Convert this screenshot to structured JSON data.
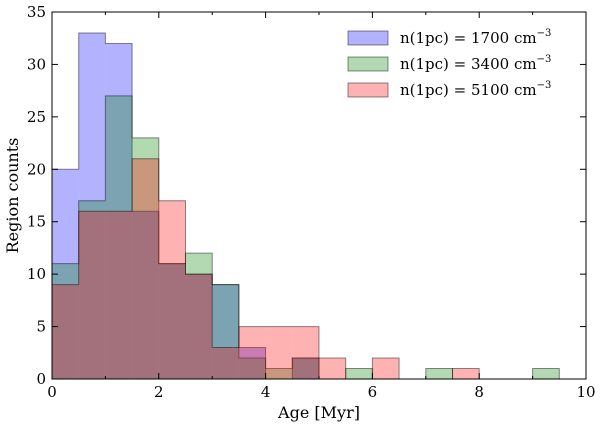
{
  "chart_data": {
    "type": "histogram",
    "title": "",
    "xlabel": "Age [Myr]",
    "ylabel": "Region counts",
    "xlim": [
      0,
      10
    ],
    "ylim": [
      0,
      35
    ],
    "xticks": [
      0,
      2,
      4,
      6,
      8,
      10
    ],
    "yticks": [
      0,
      5,
      10,
      15,
      20,
      25,
      30,
      35
    ],
    "bin_width": 0.5,
    "grid": false,
    "legend_position": "upper-right",
    "series": [
      {
        "name": "n(1pc) = 1700 cm",
        "superscript": "−3",
        "color": "#0000ff",
        "bins": [
          {
            "x0": 0.0,
            "count": 20
          },
          {
            "x0": 0.5,
            "count": 33
          },
          {
            "x0": 1.0,
            "count": 32
          },
          {
            "x0": 1.5,
            "count": 16
          },
          {
            "x0": 2.0,
            "count": 11
          },
          {
            "x0": 2.5,
            "count": 10
          },
          {
            "x0": 3.0,
            "count": 9
          },
          {
            "x0": 3.5,
            "count": 3
          },
          {
            "x0": 4.0,
            "count": 0
          },
          {
            "x0": 4.5,
            "count": 2
          }
        ]
      },
      {
        "name": "n(1pc) = 3400 cm",
        "superscript": "−3",
        "color": "#008000",
        "bins": [
          {
            "x0": 0.0,
            "count": 11
          },
          {
            "x0": 0.5,
            "count": 17
          },
          {
            "x0": 1.0,
            "count": 27
          },
          {
            "x0": 1.5,
            "count": 23
          },
          {
            "x0": 2.0,
            "count": 11
          },
          {
            "x0": 2.5,
            "count": 12
          },
          {
            "x0": 3.0,
            "count": 9
          },
          {
            "x0": 3.5,
            "count": 2
          },
          {
            "x0": 4.0,
            "count": 1
          },
          {
            "x0": 4.5,
            "count": 2
          },
          {
            "x0": 5.0,
            "count": 0
          },
          {
            "x0": 5.5,
            "count": 1
          },
          {
            "x0": 6.0,
            "count": 0
          },
          {
            "x0": 6.5,
            "count": 0
          },
          {
            "x0": 7.0,
            "count": 1
          },
          {
            "x0": 7.5,
            "count": 0
          },
          {
            "x0": 8.0,
            "count": 0
          },
          {
            "x0": 8.5,
            "count": 0
          },
          {
            "x0": 9.0,
            "count": 1
          }
        ]
      },
      {
        "name": "n(1pc) = 5100 cm",
        "superscript": "−3",
        "color": "#ff0000",
        "bins": [
          {
            "x0": 0.0,
            "count": 9
          },
          {
            "x0": 0.5,
            "count": 16
          },
          {
            "x0": 1.0,
            "count": 16
          },
          {
            "x0": 1.5,
            "count": 21
          },
          {
            "x0": 2.0,
            "count": 17
          },
          {
            "x0": 2.5,
            "count": 10
          },
          {
            "x0": 3.0,
            "count": 3
          },
          {
            "x0": 3.5,
            "count": 5
          },
          {
            "x0": 4.0,
            "count": 5
          },
          {
            "x0": 4.5,
            "count": 5
          },
          {
            "x0": 5.0,
            "count": 2
          },
          {
            "x0": 5.5,
            "count": 0
          },
          {
            "x0": 6.0,
            "count": 2
          },
          {
            "x0": 6.5,
            "count": 0
          },
          {
            "x0": 7.0,
            "count": 0
          },
          {
            "x0": 7.5,
            "count": 1
          }
        ]
      }
    ]
  }
}
